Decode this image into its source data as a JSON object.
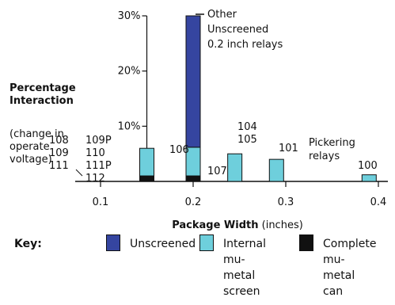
{
  "chart_data": {
    "type": "bar",
    "stacked": true,
    "xlabel_bold": "Package Width",
    "xlabel_unit": " (inches)",
    "ylabel_bold": [
      "Percentage",
      "Interaction"
    ],
    "ylabel_note": [
      "(change in",
      "operate",
      "voltage)"
    ],
    "x_ticks": [
      "0.1",
      "0.2",
      "0.3",
      "0.4"
    ],
    "x_tick_values": [
      0.1,
      0.2,
      0.3,
      0.4
    ],
    "y_ticks": [
      "10%",
      "20%",
      "30%"
    ],
    "y_tick_values": [
      10,
      20,
      30
    ],
    "xlim": [
      0.1,
      0.4
    ],
    "ylim": [
      0,
      30
    ],
    "series": [
      {
        "name": "Complete mu-metal can",
        "color": "#111111"
      },
      {
        "name": "Internal mu-metal screen",
        "color": "#6ecfdc"
      },
      {
        "name": "Unscreened",
        "color": "#3545a0"
      }
    ],
    "bars": [
      {
        "x": 0.15,
        "can": 1.0,
        "internal": 5.0,
        "unscreened": 0
      },
      {
        "x": 0.2,
        "can": 1.0,
        "internal": 5.2,
        "unscreened": 30.0
      },
      {
        "x": 0.245,
        "can": 0,
        "internal": 5.0,
        "unscreened": 0
      },
      {
        "x": 0.29,
        "can": 0,
        "internal": 4.0,
        "unscreened": 0
      },
      {
        "x": 0.39,
        "can": 0,
        "internal": 1.2,
        "unscreened": 0
      }
    ],
    "annotations": [
      {
        "lines": [
          "108",
          "109",
          "111"
        ],
        "near_x": 0.15
      },
      {
        "lines": [
          "109P",
          "110",
          "111P",
          "112"
        ],
        "near_x": 0.15
      },
      {
        "lines": [
          "106"
        ],
        "near_x": 0.2
      },
      {
        "lines": [
          "107"
        ],
        "near_x": 0.2
      },
      {
        "lines": [
          "Other",
          "Unscreened",
          "0.2 inch relays"
        ],
        "near_x": 0.2
      },
      {
        "lines": [
          "104",
          "105"
        ],
        "near_x": 0.245
      },
      {
        "lines": [
          "101"
        ],
        "near_x": 0.29
      },
      {
        "lines": [
          "Pickering",
          "relays"
        ],
        "near_x": 0.35
      },
      {
        "lines": [
          "100"
        ],
        "near_x": 0.39
      }
    ]
  },
  "key": {
    "title": "Key:",
    "items": [
      {
        "label": "Unscreened",
        "color": "#3545a0"
      },
      {
        "label": "Internal\nmu-metal\nscreen",
        "color": "#6ecfdc"
      },
      {
        "label": "Complete\nmu-metal\ncan",
        "color": "#111111"
      }
    ]
  }
}
